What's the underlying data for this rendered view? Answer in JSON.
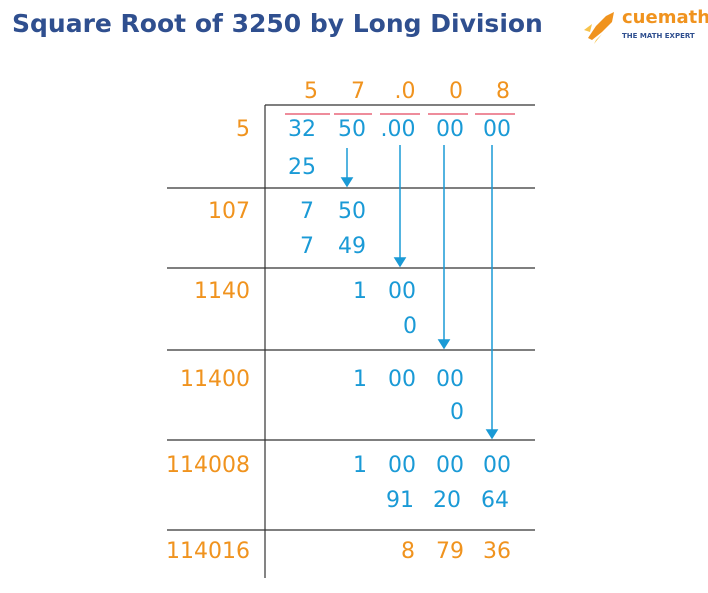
{
  "title": "Square Root of 3250 by Long Division",
  "logo": {
    "brand": "cuemath",
    "tagline": "THE MATH EXPERT"
  },
  "quotient": [
    "5",
    "7",
    ".0",
    "0",
    "8"
  ],
  "divisors": [
    "5",
    "107",
    "1140",
    "11400",
    "114008",
    "114016"
  ],
  "work": [
    [
      "32",
      "50",
      ".00",
      "00",
      "00"
    ],
    [
      "25"
    ],
    [
      "7",
      "50"
    ],
    [
      "7",
      "49"
    ],
    [
      "1",
      "00"
    ],
    [
      "0"
    ],
    [
      "1",
      "00",
      "00"
    ],
    [
      "0"
    ],
    [
      "1",
      "00",
      "00",
      "00"
    ],
    [
      "91",
      "20",
      "64"
    ],
    [
      "8",
      "79",
      "36"
    ]
  ]
}
